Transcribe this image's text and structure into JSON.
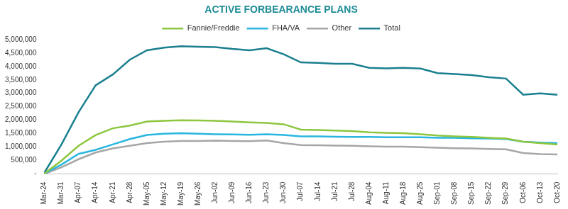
{
  "chart_data": {
    "type": "line",
    "title": "ACTIVE FORBEARANCE PLANS",
    "categories": [
      "Mar-24",
      "Mar-31",
      "Apr-07",
      "Apr-14",
      "Apr-21",
      "Apr-28",
      "May-05",
      "May-12",
      "May-19",
      "May-26",
      "Jun-02",
      "Jun-09",
      "Jun-16",
      "Jun-23",
      "Jun-30",
      "Jul-07",
      "Jul-14",
      "Jul-21",
      "Jul-28",
      "Aug-04",
      "Aug-11",
      "Aug-18",
      "Aug-25",
      "Sep-01",
      "Sep-08",
      "Sep-15",
      "Sep-22",
      "Sep-29",
      "Oct-06",
      "Oct-13",
      "Oct-20"
    ],
    "series": [
      {
        "name": "Fannie/Freddie",
        "color": "#8dc63f",
        "values": [
          20000,
          500000,
          1050000,
          1450000,
          1700000,
          1800000,
          1950000,
          1980000,
          2000000,
          1990000,
          1980000,
          1950000,
          1920000,
          1900000,
          1850000,
          1650000,
          1640000,
          1620000,
          1600000,
          1550000,
          1530000,
          1520000,
          1480000,
          1430000,
          1400000,
          1380000,
          1350000,
          1320000,
          1200000,
          1150000,
          1100000
        ]
      },
      {
        "name": "FHA/VA",
        "color": "#29b6e0",
        "values": [
          20000,
          350000,
          750000,
          900000,
          1100000,
          1300000,
          1450000,
          1500000,
          1520000,
          1500000,
          1480000,
          1470000,
          1460000,
          1480000,
          1450000,
          1400000,
          1400000,
          1390000,
          1380000,
          1380000,
          1370000,
          1370000,
          1370000,
          1350000,
          1350000,
          1330000,
          1320000,
          1300000,
          1200000,
          1170000,
          1150000
        ]
      },
      {
        "name": "Other",
        "color": "#a6a6a6",
        "values": [
          10000,
          250000,
          550000,
          800000,
          950000,
          1050000,
          1150000,
          1200000,
          1230000,
          1230000,
          1240000,
          1230000,
          1220000,
          1250000,
          1150000,
          1080000,
          1070000,
          1060000,
          1050000,
          1030000,
          1020000,
          1020000,
          1000000,
          980000,
          960000,
          950000,
          930000,
          920000,
          780000,
          740000,
          730000
        ]
      },
      {
        "name": "Total",
        "color": "#1a7f8e",
        "values": [
          50000,
          1100000,
          2300000,
          3300000,
          3700000,
          4250000,
          4600000,
          4700000,
          4750000,
          4730000,
          4720000,
          4650000,
          4600000,
          4680000,
          4450000,
          4150000,
          4130000,
          4100000,
          4100000,
          3950000,
          3930000,
          3950000,
          3920000,
          3750000,
          3720000,
          3680000,
          3600000,
          3550000,
          2950000,
          3000000,
          2950000
        ]
      }
    ],
    "ylim": [
      0,
      5000000
    ],
    "yticks": [
      {
        "value": 0,
        "label": "-"
      },
      {
        "value": 500000,
        "label": "500,000"
      },
      {
        "value": 1000000,
        "label": "1,000,000"
      },
      {
        "value": 1500000,
        "label": "1,500,000"
      },
      {
        "value": 2000000,
        "label": "2,000,000"
      },
      {
        "value": 2500000,
        "label": "2,500,000"
      },
      {
        "value": 3000000,
        "label": "3,000,000"
      },
      {
        "value": 3500000,
        "label": "3,500,000"
      },
      {
        "value": 4000000,
        "label": "4,000,000"
      },
      {
        "value": 4500000,
        "label": "4,500,000"
      },
      {
        "value": 5000000,
        "label": "5,000,000"
      }
    ],
    "grid": false,
    "legend": "top"
  }
}
